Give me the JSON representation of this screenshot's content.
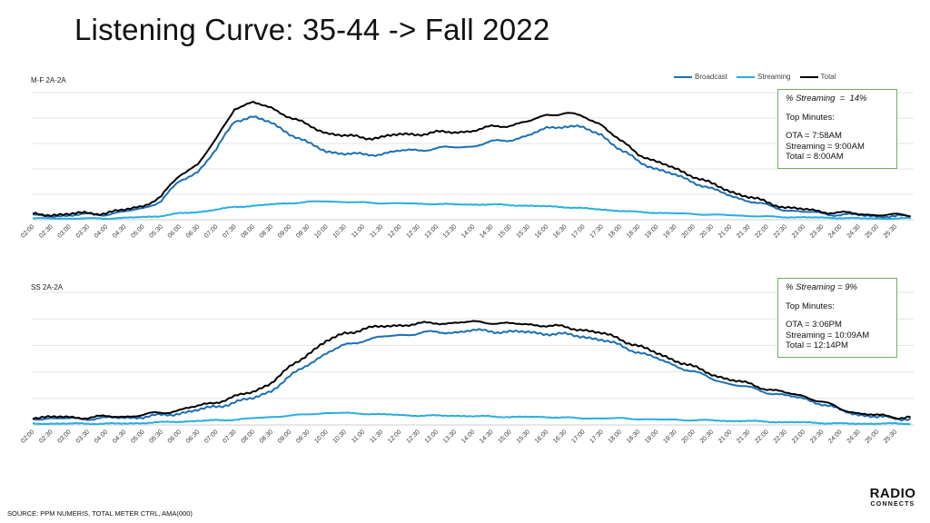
{
  "title": "Listening Curve: 35-44 -> Fall 2022",
  "legend": [
    {
      "name": "Broadcast",
      "color": "#1a6fb5"
    },
    {
      "name": "Streaming",
      "color": "#29aee0"
    },
    {
      "name": "Total",
      "color": "#000000"
    }
  ],
  "time_labels": [
    "02:00",
    "02:30",
    "03:00",
    "03:30",
    "04:00",
    "04:30",
    "05:00",
    "05:30",
    "06:00",
    "06:30",
    "07:00",
    "07:30",
    "08:00",
    "08:30",
    "09:00",
    "09:30",
    "10:00",
    "10:30",
    "11:00",
    "11:30",
    "12:00",
    "12:30",
    "13:00",
    "13:30",
    "14:00",
    "14:30",
    "15:00",
    "15:30",
    "16:00",
    "16:30",
    "17:00",
    "17:30",
    "18:00",
    "18:30",
    "19:00",
    "19:30",
    "20:00",
    "20:30",
    "21:00",
    "21:30",
    "22:00",
    "22:30",
    "23:00",
    "23:30",
    "24:00",
    "24:30",
    "25:00",
    "25:30"
  ],
  "chart_data": [
    {
      "type": "line",
      "label": "M-F 2A-2A",
      "categories": [
        "02:00",
        "02:30",
        "03:00",
        "03:30",
        "04:00",
        "04:30",
        "05:00",
        "05:30",
        "06:00",
        "06:30",
        "07:00",
        "07:30",
        "08:00",
        "08:30",
        "09:00",
        "09:30",
        "10:00",
        "10:30",
        "11:00",
        "11:30",
        "12:00",
        "12:30",
        "13:00",
        "13:30",
        "14:00",
        "14:30",
        "15:00",
        "15:30",
        "16:00",
        "16:30",
        "17:00",
        "17:30",
        "18:00",
        "18:30",
        "19:00",
        "19:30",
        "20:00",
        "20:30",
        "21:00",
        "21:30",
        "22:00",
        "22:30",
        "23:00",
        "23:30",
        "24:00",
        "24:30",
        "25:00",
        "25:30"
      ],
      "ylim": [
        0,
        100
      ],
      "grid": true,
      "legend_position": "top-right",
      "series": [
        {
          "name": "Broadcast",
          "values": [
            3,
            3,
            3.5,
            4,
            4.5,
            6,
            9,
            15,
            30,
            38,
            55,
            78,
            81,
            76,
            68,
            60,
            54,
            52,
            51,
            52,
            54,
            55,
            56,
            57,
            58,
            61,
            63,
            66,
            72,
            74,
            72,
            67,
            55,
            46,
            40,
            35,
            30,
            24,
            19,
            15,
            11,
            8,
            6,
            5,
            4,
            3.5,
            3,
            2.5
          ]
        },
        {
          "name": "Streaming",
          "values": [
            1,
            1,
            1,
            1,
            1,
            1.5,
            2,
            3,
            5,
            6,
            8,
            10,
            11,
            12,
            13,
            14,
            14.5,
            14,
            13.5,
            13,
            13,
            12.5,
            12.5,
            12,
            12,
            12,
            11.5,
            11,
            10.5,
            10,
            9,
            8,
            7,
            6,
            5.5,
            5,
            4.5,
            4,
            3.5,
            3,
            2.5,
            2,
            2,
            1.5,
            1.5,
            1,
            1,
            1
          ]
        },
        {
          "name": "Total",
          "values": [
            4,
            4,
            4.5,
            5,
            5.5,
            7.5,
            11,
            18,
            35,
            44,
            63,
            88,
            92,
            88,
            81,
            74,
            68.5,
            66,
            64.5,
            65,
            67,
            67.5,
            68.5,
            69,
            70,
            73,
            74.5,
            77,
            82.5,
            84,
            81,
            75,
            62,
            52,
            45.5,
            40,
            34.5,
            28,
            22.5,
            18,
            13.5,
            10,
            8,
            6.5,
            5.5,
            4.5,
            4,
            3.5
          ]
        }
      ],
      "callout": {
        "streaming_pct": "% Streaming  =  14%",
        "heading": "Top Minutes:",
        "lines": [
          "OTA = 7:58AM",
          "Streaming = 9:00AM",
          "Total = 8:00AM"
        ]
      }
    },
    {
      "type": "line",
      "label": "SS 2A-2A",
      "categories": [
        "02:00",
        "02:30",
        "03:00",
        "03:30",
        "04:00",
        "04:30",
        "05:00",
        "05:30",
        "06:00",
        "06:30",
        "07:00",
        "07:30",
        "08:00",
        "08:30",
        "09:00",
        "09:30",
        "10:00",
        "10:30",
        "11:00",
        "11:30",
        "12:00",
        "12:30",
        "13:00",
        "13:30",
        "14:00",
        "14:30",
        "15:00",
        "15:30",
        "16:00",
        "16:30",
        "17:00",
        "17:30",
        "18:00",
        "18:30",
        "19:00",
        "19:30",
        "20:00",
        "20:30",
        "21:00",
        "21:30",
        "22:00",
        "22:30",
        "23:00",
        "23:30",
        "24:00",
        "24:30",
        "25:00",
        "25:30"
      ],
      "ylim": [
        0,
        100
      ],
      "grid": true,
      "legend_position": "top-right",
      "series": [
        {
          "name": "Broadcast",
          "values": [
            5,
            5,
            4.5,
            5,
            5,
            5.5,
            6,
            7,
            9,
            11,
            14,
            17,
            20,
            26,
            36,
            46,
            54,
            60,
            64,
            66,
            68,
            69,
            70,
            70,
            71,
            71,
            70,
            70,
            69,
            68,
            67,
            64,
            60,
            55,
            50,
            45,
            40,
            35,
            31,
            28,
            25,
            22,
            20,
            16,
            11,
            8,
            6,
            5
          ]
        },
        {
          "name": "Streaming",
          "values": [
            1,
            1,
            1,
            1,
            1,
            1,
            1.5,
            2,
            2.5,
            3,
            3.5,
            4,
            5,
            6,
            7,
            8,
            9,
            9,
            8.5,
            8,
            7.5,
            7,
            7,
            7,
            6.5,
            6.5,
            6,
            6,
            6,
            5.5,
            5,
            5,
            5,
            4.5,
            4,
            4,
            3.5,
            3.5,
            3,
            3,
            2.5,
            2,
            2,
            1.5,
            1,
            1,
            1,
            1
          ]
        },
        {
          "name": "Total",
          "values": [
            6,
            6,
            5.5,
            6,
            6,
            6.5,
            7.5,
            9,
            11.5,
            14,
            17.5,
            21,
            25,
            32,
            43,
            54,
            63,
            69,
            72.5,
            74,
            75.5,
            76,
            77,
            77,
            77.5,
            77.5,
            76,
            76,
            75,
            73.5,
            72,
            69,
            65,
            59.5,
            54,
            49,
            43.5,
            38.5,
            34,
            31,
            27.5,
            24,
            22,
            17.5,
            12,
            9,
            7,
            6
          ]
        }
      ],
      "callout": {
        "streaming_pct": "% Streaming = 9%",
        "heading": "Top Minutes:",
        "lines": [
          "OTA = 3:06PM",
          "Streaming = 10:09AM",
          "Total = 12:14PM"
        ]
      }
    }
  ],
  "footer": "SOURCE: PPM NUMERIS, TOTAL METER CTRL, AMA(000)",
  "logo": {
    "top": "RADIO",
    "bottom": "CONNECTS"
  }
}
